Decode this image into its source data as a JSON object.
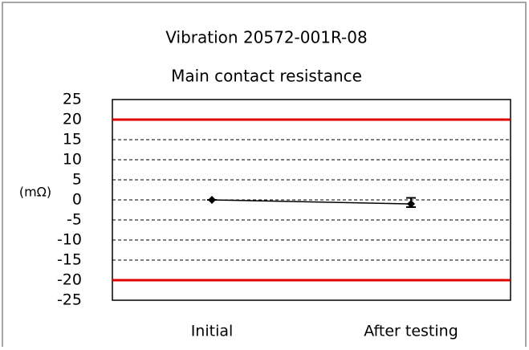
{
  "chart_data": {
    "type": "line",
    "title": "Vibration 20572-001R-08",
    "subtitle": "Main contact resistance",
    "y_label": "(mΩ)",
    "categories": [
      "Initial",
      "After testing"
    ],
    "series": [
      {
        "color": "#000000",
        "values": [
          0,
          -1
        ],
        "max": [
          0,
          0.5
        ],
        "min": [
          0,
          -1.8
        ]
      }
    ],
    "limits": [
      20,
      -20
    ],
    "limit_color": "#e00000",
    "ylim": [
      -25,
      25
    ],
    "yticks": [
      25,
      20,
      15,
      10,
      5,
      0,
      -5,
      -10,
      -15,
      -20,
      -25
    ],
    "grid": true
  }
}
